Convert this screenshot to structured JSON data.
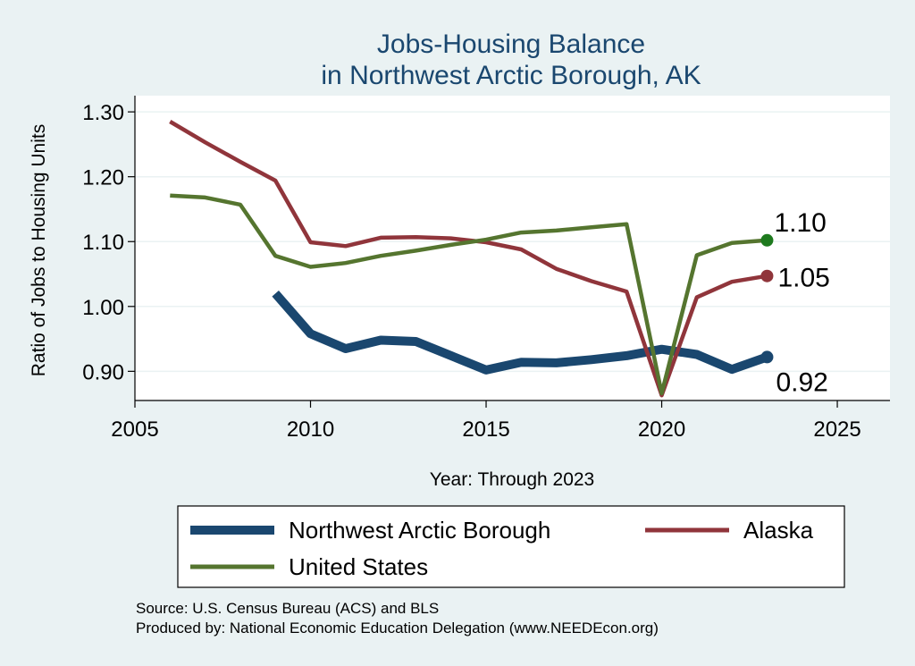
{
  "chart_data": {
    "type": "line",
    "title": [
      "Jobs-Housing Balance",
      "in Northwest Arctic Borough, AK"
    ],
    "xlabel": "Year: Through 2023",
    "ylabel": "Ratio of Jobs to Housing Units",
    "xlim": [
      2005,
      2026.5
    ],
    "ylim": [
      0.855,
      1.325
    ],
    "xticks": [
      2005,
      2010,
      2015,
      2020,
      2025
    ],
    "yticks": [
      0.9,
      1.0,
      1.1,
      1.2,
      1.3
    ],
    "ytick_labels": [
      "0.90",
      "1.00",
      "1.10",
      "1.20",
      "1.30"
    ],
    "grid": true,
    "legend_position": "bottom",
    "series": [
      {
        "name": "Northwest Arctic Borough",
        "color": "#1a476f",
        "end_label": "0.92",
        "x": [
          2009,
          2010,
          2011,
          2012,
          2013,
          2014,
          2015,
          2016,
          2017,
          2018,
          2019,
          2020,
          2021,
          2022,
          2023
        ],
        "values": [
          1.02,
          0.958,
          0.935,
          0.948,
          0.946,
          0.924,
          0.902,
          0.914,
          0.913,
          0.918,
          0.924,
          0.934,
          0.926,
          0.903,
          0.922
        ]
      },
      {
        "name": "Alaska",
        "color": "#90353b",
        "end_label": "1.05",
        "x": [
          2006,
          2007,
          2008,
          2009,
          2010,
          2011,
          2012,
          2013,
          2014,
          2015,
          2016,
          2017,
          2018,
          2019,
          2020,
          2021,
          2022,
          2023
        ],
        "values": [
          1.285,
          1.253,
          1.223,
          1.194,
          1.099,
          1.093,
          1.106,
          1.107,
          1.105,
          1.099,
          1.088,
          1.058,
          1.039,
          1.023,
          0.863,
          1.014,
          1.038,
          1.047
        ]
      },
      {
        "name": "United States",
        "color": "#55752f",
        "end_label": "1.10",
        "x": [
          2006,
          2007,
          2008,
          2009,
          2010,
          2011,
          2012,
          2013,
          2014,
          2015,
          2016,
          2017,
          2018,
          2019,
          2020,
          2021,
          2022,
          2023
        ],
        "values": [
          1.171,
          1.168,
          1.157,
          1.078,
          1.061,
          1.067,
          1.078,
          1.086,
          1.095,
          1.103,
          1.114,
          1.117,
          1.122,
          1.127,
          0.866,
          1.079,
          1.098,
          1.102
        ]
      }
    ],
    "source_note": "Source: U.S. Census Bureau (ACS) and BLS",
    "produced_note": "Produced by: National Economic Education Delegation (www.NEEDEcon.org)"
  }
}
